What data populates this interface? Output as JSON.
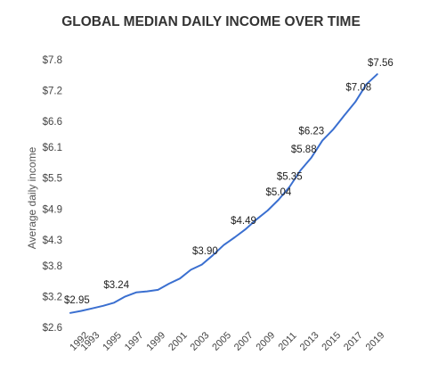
{
  "chart_data": {
    "type": "line",
    "title": "GLOBAL MEDIAN DAILY INCOME OVER TIME",
    "ylabel": "Average daily income",
    "xlabel": "",
    "ylim": [
      2.6,
      7.8
    ],
    "xlim": [
      1991,
      2020
    ],
    "y_ticks": [
      7.8,
      7.2,
      6.6,
      6.1,
      5.5,
      4.9,
      4.3,
      3.8,
      3.2,
      2.6
    ],
    "y_tick_labels": [
      "$7.8",
      "$7.2",
      "$6.6",
      "$6.1",
      "$5.5",
      "$4.9",
      "$4.3",
      "$3.8",
      "$3.2",
      "$2.6"
    ],
    "x_ticks": [
      1992,
      1993,
      1995,
      1997,
      1999,
      2001,
      2003,
      2005,
      2007,
      2009,
      2011,
      2013,
      2015,
      2017,
      2019
    ],
    "x_tick_labels": [
      "1992",
      "1993",
      "1995",
      "1997",
      "1999",
      "2001",
      "2003",
      "2005",
      "2007",
      "2009",
      "2011",
      "2013",
      "2015",
      "2017",
      "2019"
    ],
    "color": "#3a6fd0",
    "grid": false,
    "series": [
      {
        "x": [
          1991,
          1992,
          1993,
          1994,
          1995,
          1996,
          1997,
          1998,
          1999,
          2000,
          2001,
          2002,
          2003,
          2004,
          2005,
          2006,
          2007,
          2008,
          2009,
          2010,
          2011,
          2012,
          2013,
          2014,
          2015,
          2016,
          2017,
          2018,
          2019
        ],
        "values": [
          2.88,
          2.92,
          2.97,
          3.02,
          3.08,
          3.2,
          3.28,
          3.3,
          3.33,
          3.45,
          3.55,
          3.72,
          3.82,
          4.0,
          4.2,
          4.35,
          4.51,
          4.7,
          4.87,
          5.08,
          5.33,
          5.65,
          5.9,
          6.23,
          6.45,
          6.72,
          6.98,
          7.32,
          7.52
        ]
      }
    ],
    "data_labels": [
      {
        "x": 1991.6,
        "y": 2.95,
        "text": "$2.95"
      },
      {
        "x": 1995.2,
        "y": 3.24,
        "text": "$3.24"
      },
      {
        "x": 2003.3,
        "y": 3.9,
        "text": "$3.90"
      },
      {
        "x": 2006.8,
        "y": 4.49,
        "text": "$4.49"
      },
      {
        "x": 2010.0,
        "y": 5.04,
        "text": "$5.04"
      },
      {
        "x": 2011.0,
        "y": 5.35,
        "text": "$5.35"
      },
      {
        "x": 2012.3,
        "y": 5.88,
        "text": "$5.88"
      },
      {
        "x": 2013.0,
        "y": 6.23,
        "text": "$6.23"
      },
      {
        "x": 2017.3,
        "y": 7.08,
        "text": "$7.08"
      },
      {
        "x": 2019.3,
        "y": 7.56,
        "text": "$7.56"
      }
    ]
  }
}
